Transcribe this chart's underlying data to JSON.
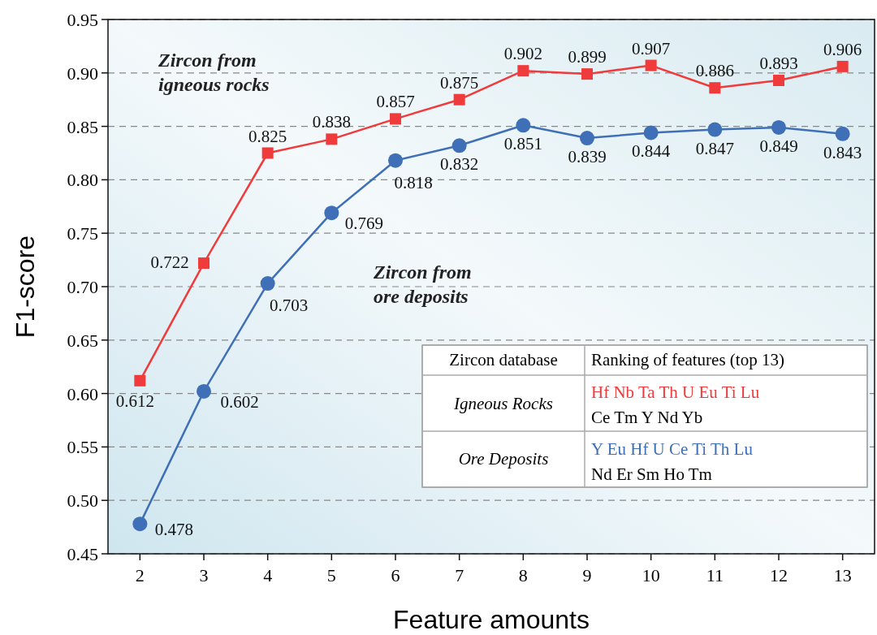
{
  "chart_data": {
    "type": "line",
    "xlabel": "Feature amounts",
    "ylabel": "F1-score",
    "x": [
      2,
      3,
      4,
      5,
      6,
      7,
      8,
      9,
      10,
      11,
      12,
      13
    ],
    "series": [
      {
        "color": "#ef3b3b",
        "marker": "square",
        "values": [
          0.612,
          0.722,
          0.825,
          0.838,
          0.857,
          0.875,
          0.902,
          0.899,
          0.907,
          0.886,
          0.893,
          0.906
        ]
      },
      {
        "color": "#3f6fb7",
        "marker": "circle",
        "values": [
          0.478,
          0.602,
          0.703,
          0.769,
          0.818,
          0.832,
          0.851,
          0.839,
          0.844,
          0.847,
          0.849,
          0.843
        ]
      }
    ],
    "xlim": [
      1.5,
      13.5
    ],
    "xticks": [
      2,
      3,
      4,
      5,
      6,
      7,
      8,
      9,
      10,
      11,
      12,
      13
    ],
    "ylim": [
      0.45,
      0.95
    ],
    "yticks": [
      {
        "value": 0.45,
        "label": "0.45"
      },
      {
        "value": 0.5,
        "label": "0.50"
      },
      {
        "value": 0.55,
        "label": "0.55"
      },
      {
        "value": 0.6,
        "label": "0.60"
      },
      {
        "value": 0.65,
        "label": "0.65"
      },
      {
        "value": 0.7,
        "label": "0.70"
      },
      {
        "value": 0.75,
        "label": "0.75"
      },
      {
        "value": 0.8,
        "label": "0.80"
      },
      {
        "value": 0.85,
        "label": "0.85"
      },
      {
        "value": 0.9,
        "label": "0.90"
      },
      {
        "value": 0.95,
        "label": "0.95"
      }
    ],
    "grid": "y",
    "data_labels": true,
    "line_style": "solid",
    "annotations": [
      "Zircon from igneous rocks",
      "Zircon from ore deposits",
      "Zircon database",
      "Ranking of features (top 13)",
      "Igneous Rocks",
      "Hf Nb Ta Th U Eu Ti Lu",
      "Ce Tm Y Nd Yb",
      "Ore Deposits",
      "Y Eu Hf U Ce Ti Th Lu",
      "Nd Er Sm Ho Tm"
    ]
  }
}
